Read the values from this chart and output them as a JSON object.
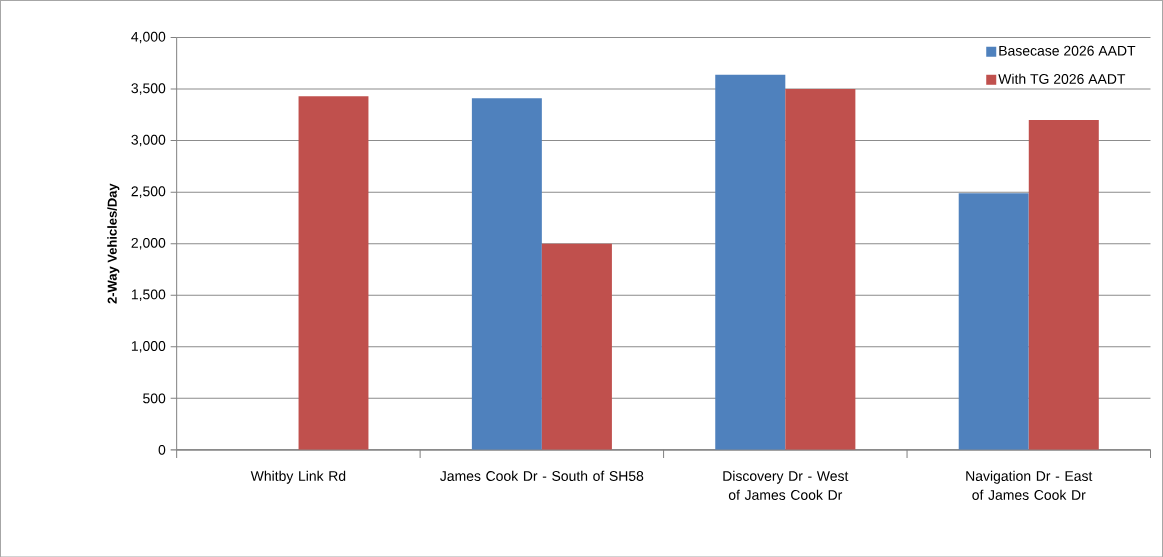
{
  "chart_data": {
    "type": "bar",
    "ylabel": "2-Way Vehicles/Day",
    "categories": [
      "Whitby Link Rd",
      "James Cook Dr - South of SH58",
      "Discovery Dr - West of James Cook Dr",
      "Navigation Dr - East of James Cook Dr"
    ],
    "series": [
      {
        "name": "Basecase 2026 AADT",
        "color": "#4f81bd",
        "values": [
          null,
          3410,
          3640,
          2490
        ]
      },
      {
        "name": "With TG 2026 AADT",
        "color": "#c0504d",
        "values": [
          3430,
          2000,
          3500,
          3200
        ]
      }
    ],
    "ylim": [
      0,
      4000
    ],
    "yticks": [
      {
        "value": 0,
        "label": "0"
      },
      {
        "value": 500,
        "label": "500"
      },
      {
        "value": 1000,
        "label": "1,000"
      },
      {
        "value": 1500,
        "label": "1,500"
      },
      {
        "value": 2000,
        "label": "2,000"
      },
      {
        "value": 2500,
        "label": "2,500"
      },
      {
        "value": 3000,
        "label": "3,000"
      },
      {
        "value": 3500,
        "label": "3,500"
      },
      {
        "value": 4000,
        "label": "4,000"
      }
    ],
    "grid": "y",
    "legend": "top right"
  }
}
